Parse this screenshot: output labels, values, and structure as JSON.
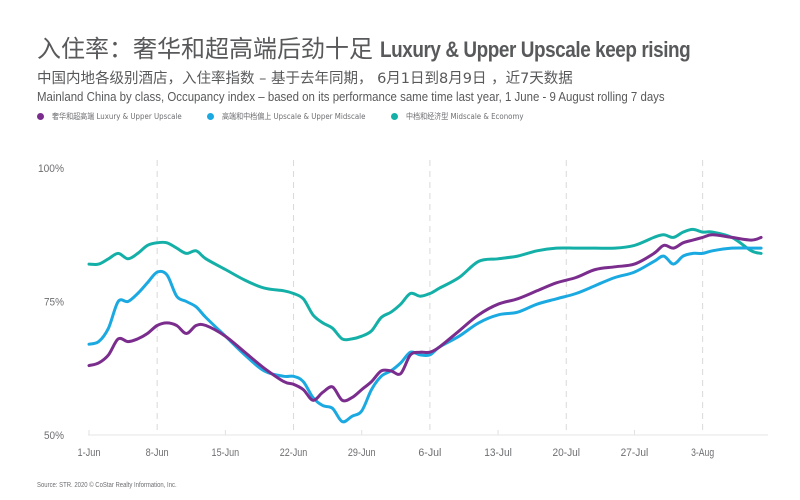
{
  "header": {
    "title_cn": "入住率：奢华和超高端后劲十足",
    "title_en": "Luxury & Upper Upscale keep rising",
    "subtitle_cn": "中国内地各级别酒店，入住率指数 – 基于去年同期， 6月1日到8月9日 ，近7天数据",
    "subtitle_en": "Mainland China by class, Occupancy index – based on its performance same time last year, 1 June - 9 August rolling 7 days"
  },
  "legend": [
    {
      "label": "奢华和超高端 Luxury & Upper Upscale",
      "color": "#7b2d8e"
    },
    {
      "label": "高端和中档偏上 Upscale & Upper Midscale",
      "color": "#1ba9e1"
    },
    {
      "label": "中档和经济型 Midscale & Economy",
      "color": "#14b0a8"
    }
  ],
  "source": "Source: STR. 2020 © CoStar Realty Information, Inc.",
  "chart_data": {
    "type": "line",
    "title": "入住率：奢华和超高端后劲十足 Luxury & Upper Upscale keep rising",
    "xlabel": "",
    "ylabel": "",
    "ylim": [
      50,
      100
    ],
    "y_ticks": [
      "100%",
      "75%",
      "50%"
    ],
    "y_tick_values": [
      100,
      75,
      50
    ],
    "x_ticks": [
      "1-Jun",
      "8-Jun",
      "15-Jun",
      "22-Jun",
      "29-Jun",
      "6-Jul",
      "13-Jul",
      "20-Jul",
      "27-Jul",
      "3-Aug"
    ],
    "x_tick_days": [
      0,
      7,
      14,
      21,
      28,
      35,
      42,
      49,
      56,
      63
    ],
    "x_range_days": [
      0,
      69
    ],
    "grid": "vertical dashed at 8-Jun, 22-Jun, 6-Jul, 20-Jul, 3-Aug",
    "gridline_days": [
      7,
      21,
      35,
      49,
      63
    ],
    "legend_position": "top-left",
    "series": [
      {
        "name": "奢华和超高端 Luxury & Upper Upscale",
        "color": "#7b2d8e",
        "days": [
          0,
          1,
          2,
          3,
          4,
          5,
          6,
          7,
          8,
          9,
          10,
          11,
          12,
          14,
          16,
          18,
          20,
          21,
          22,
          23,
          24,
          25,
          26,
          27,
          28,
          29,
          30,
          31,
          32,
          33,
          34,
          35,
          36,
          38,
          40,
          42,
          44,
          46,
          48,
          50,
          52,
          54,
          56,
          58,
          59,
          60,
          61,
          62,
          63,
          64,
          66,
          68,
          69
        ],
        "values": [
          63.0,
          63.5,
          65.0,
          68.0,
          67.5,
          68.0,
          69.0,
          70.5,
          71.0,
          70.5,
          69.0,
          70.5,
          70.5,
          68.5,
          65.5,
          62.5,
          60.0,
          59.5,
          58.5,
          56.5,
          58.0,
          59.0,
          56.5,
          57.0,
          58.5,
          60.0,
          62.0,
          62.0,
          61.5,
          65.0,
          65.5,
          65.5,
          66.5,
          69.5,
          72.5,
          74.5,
          75.5,
          77.0,
          78.5,
          79.5,
          81.0,
          81.5,
          82.0,
          84.0,
          85.5,
          85.0,
          86.0,
          86.5,
          87.0,
          87.5,
          87.0,
          86.5,
          87.0
        ]
      },
      {
        "name": "高端和中档偏上 Upscale & Upper Midscale",
        "color": "#1ba9e1",
        "days": [
          0,
          1,
          2,
          3,
          4,
          5,
          6,
          7,
          8,
          9,
          10,
          11,
          12,
          14,
          16,
          18,
          20,
          21,
          22,
          23,
          24,
          25,
          26,
          27,
          28,
          29,
          30,
          31,
          32,
          33,
          34,
          35,
          36,
          38,
          40,
          42,
          44,
          46,
          48,
          50,
          52,
          54,
          56,
          58,
          59,
          60,
          61,
          62,
          63,
          64,
          66,
          68,
          69
        ],
        "values": [
          67.0,
          67.5,
          70.0,
          75.0,
          75.0,
          76.5,
          78.5,
          80.5,
          80.0,
          76.0,
          75.0,
          74.0,
          72.0,
          68.5,
          65.0,
          62.0,
          61.0,
          61.0,
          60.0,
          57.0,
          55.5,
          55.0,
          52.5,
          53.5,
          54.5,
          58.5,
          61.0,
          62.0,
          63.5,
          65.5,
          65.0,
          65.0,
          66.5,
          68.5,
          71.0,
          72.5,
          73.0,
          74.5,
          75.5,
          76.5,
          78.0,
          79.5,
          80.5,
          82.5,
          83.5,
          82.0,
          83.5,
          84.0,
          84.0,
          84.5,
          85.0,
          85.0,
          85.0
        ]
      },
      {
        "name": "中档和经济型 Midscale & Economy",
        "color": "#14b0a8",
        "days": [
          0,
          1,
          2,
          3,
          4,
          5,
          6,
          7,
          8,
          9,
          10,
          11,
          12,
          14,
          16,
          18,
          20,
          21,
          22,
          23,
          24,
          25,
          26,
          27,
          28,
          29,
          30,
          31,
          32,
          33,
          34,
          35,
          36,
          38,
          40,
          42,
          44,
          46,
          48,
          50,
          52,
          54,
          56,
          58,
          59,
          60,
          61,
          62,
          63,
          64,
          66,
          68,
          69
        ],
        "values": [
          82.0,
          82.0,
          83.0,
          84.0,
          83.0,
          84.0,
          85.5,
          86.0,
          86.0,
          85.0,
          84.0,
          84.5,
          83.0,
          81.0,
          79.0,
          77.5,
          77.0,
          76.5,
          75.5,
          72.5,
          71.0,
          70.0,
          68.0,
          68.0,
          68.5,
          69.5,
          72.0,
          73.0,
          74.5,
          76.5,
          76.0,
          76.5,
          77.5,
          79.5,
          82.5,
          83.0,
          83.5,
          84.5,
          85.0,
          85.0,
          85.0,
          85.0,
          85.5,
          87.0,
          87.5,
          87.0,
          88.0,
          88.5,
          88.0,
          88.0,
          87.0,
          84.5,
          84.0
        ]
      }
    ]
  }
}
